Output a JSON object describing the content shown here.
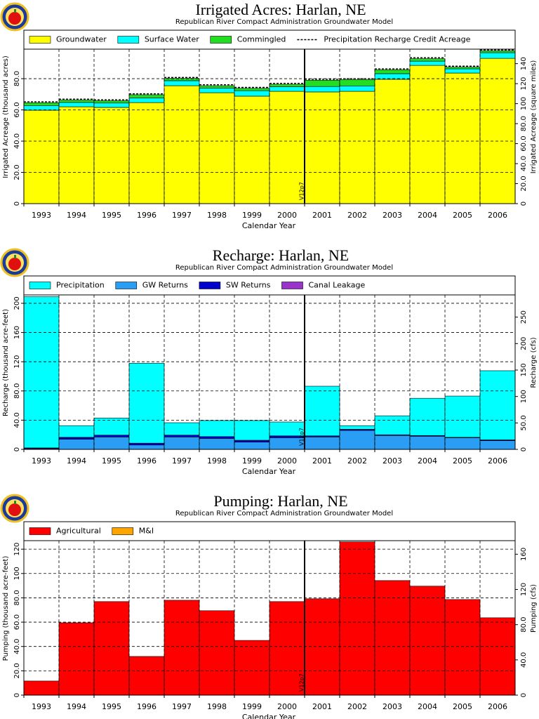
{
  "chart_data": [
    {
      "type": "bar",
      "stacked": true,
      "title": "Irrigated Acres: Harlan, NE",
      "subtitle": "Republican River Compact Administration Groundwater Model",
      "xlabel": "Calendar Year",
      "ylabel": "Irrigated Acreage (thousand acres)",
      "y2label": "Irrigated Acreage (square miles)",
      "annotation": "V12p7",
      "grid": true,
      "categories": [
        "1993",
        "1994",
        "1995",
        "1996",
        "1997",
        "1998",
        "1999",
        "2000",
        "2001",
        "2002",
        "2003",
        "2004",
        "2005",
        "2006"
      ],
      "series": [
        {
          "name": "Groundwater",
          "color": "#ffff00",
          "values": [
            59.8,
            62,
            61.6,
            64.7,
            75.5,
            71,
            68.8,
            71.9,
            71.5,
            71.9,
            79.6,
            88.5,
            83.6,
            93
          ]
        },
        {
          "name": "Surface Water",
          "color": "#00ffff",
          "values": [
            3,
            2.8,
            2.8,
            3,
            3.2,
            3,
            3.5,
            3,
            3.5,
            3.5,
            3.6,
            2.7,
            2.7,
            3.6
          ]
        },
        {
          "name": "Commingled",
          "color": "#22dd22",
          "values": [
            1.8,
            1.5,
            1.5,
            2,
            1.5,
            1.5,
            1.5,
            1.5,
            4,
            4,
            2.5,
            1.6,
            1.1,
            1.2
          ]
        },
        {
          "name": "Precipitation Recharge Credit Acreage",
          "color": "#000000",
          "kind": "line",
          "values": [
            65.2,
            66.9,
            66.5,
            70.3,
            80.8,
            76.1,
            74.4,
            77,
            79.6,
            80,
            86.3,
            93.4,
            88,
            98.4
          ]
        }
      ],
      "ylim": [
        0,
        98.9
      ],
      "yticks": [
        0,
        {
          "value": 20,
          "label": "20.0"
        },
        {
          "value": 40,
          "label": "40.0"
        },
        {
          "value": 60,
          "label": "60.0"
        },
        {
          "value": 80,
          "label": "80.0"
        }
      ],
      "y2lim": [
        0,
        154.5
      ],
      "y2ticks": [
        0,
        {
          "value": 20,
          "label": "20.0"
        },
        {
          "value": 40,
          "label": "40.0"
        },
        {
          "value": 60,
          "label": "60.0"
        },
        {
          "value": 80,
          "label": "80.0"
        },
        100,
        120,
        140
      ]
    },
    {
      "type": "bar",
      "stacked": true,
      "title": "Recharge: Harlan, NE",
      "subtitle": "Republican River Compact Administration Groundwater Model",
      "xlabel": "Calendar Year",
      "ylabel": "Recharge (thousand acre-feet)",
      "y2label": "Recharge (cfs)",
      "annotation": "V12p7",
      "grid": true,
      "categories": [
        "1993",
        "1994",
        "1995",
        "1996",
        "1997",
        "1998",
        "1999",
        "2000",
        "2001",
        "2002",
        "2003",
        "2004",
        "2005",
        "2006"
      ],
      "series": [
        {
          "name": "Canal Leakage",
          "color": "#9933cc",
          "values": [
            0,
            0,
            0,
            0,
            0,
            0,
            0,
            0,
            0,
            0,
            0,
            0,
            0,
            0
          ]
        },
        {
          "name": "GW Returns",
          "color": "#2a9df4",
          "values": [
            1,
            14,
            17,
            6,
            17,
            15,
            10,
            16,
            17,
            26,
            19,
            18,
            16,
            12
          ]
        },
        {
          "name": "SW Returns",
          "color": "#0000cc",
          "values": [
            1,
            2.5,
            2.5,
            2.5,
            2.5,
            2.5,
            2.5,
            2.5,
            1.5,
            1.5,
            1,
            1,
            0.5,
            1
          ]
        },
        {
          "name": "Precipitation",
          "color": "#00ffff",
          "values": [
            207,
            16,
            23.5,
            109.5,
            17,
            22,
            27,
            19,
            68,
            5,
            26,
            51,
            56.5,
            94.7
          ]
        }
      ],
      "legend_order": [
        "Precipitation",
        "GW Returns",
        "SW Returns",
        "Canal Leakage"
      ],
      "ylim": [
        0,
        211.5
      ],
      "yticks": [
        0,
        {
          "value": 40,
          "label": "40.0"
        },
        {
          "value": 80,
          "label": "80.0"
        },
        120,
        160,
        200
      ],
      "y2lim": [
        0,
        292
      ],
      "y2ticks": [
        0,
        {
          "value": 50,
          "label": "50.0"
        },
        100,
        150,
        200,
        250
      ]
    },
    {
      "type": "bar",
      "stacked": true,
      "title": "Pumping: Harlan, NE",
      "subtitle": "Republican River Compact Administration Groundwater Model",
      "xlabel": "Calendar Year",
      "ylabel": "Pumping (thousand acre-feet)",
      "y2label": "Pumping (cfs)",
      "annotation": "V12p7",
      "grid": true,
      "categories": [
        "1993",
        "1994",
        "1995",
        "1996",
        "1997",
        "1998",
        "1999",
        "2000",
        "2001",
        "2002",
        "2003",
        "2004",
        "2005",
        "2006"
      ],
      "series": [
        {
          "name": "Agricultural",
          "color": "#ff0000",
          "values": [
            11.6,
            59.5,
            76.9,
            31.8,
            78,
            69.4,
            45,
            76.9,
            79.2,
            126,
            94.2,
            89.6,
            78.6,
            63.6
          ]
        },
        {
          "name": "M&I",
          "color": "#ffa500",
          "values": [
            0,
            0,
            0,
            0,
            0,
            0,
            0,
            0,
            0,
            0,
            0,
            0,
            0,
            0
          ]
        }
      ],
      "ylim": [
        0,
        127
      ],
      "yticks": [
        0,
        {
          "value": 20,
          "label": "20.0"
        },
        {
          "value": 40,
          "label": "40.0"
        },
        {
          "value": 60,
          "label": "60.0"
        },
        {
          "value": 80,
          "label": "80.0"
        },
        100,
        120
      ],
      "y2lim": [
        0,
        175.4
      ],
      "y2ticks": [
        0,
        {
          "value": 40,
          "label": "40.0"
        },
        {
          "value": 80,
          "label": "80.0"
        },
        120,
        160
      ]
    }
  ]
}
